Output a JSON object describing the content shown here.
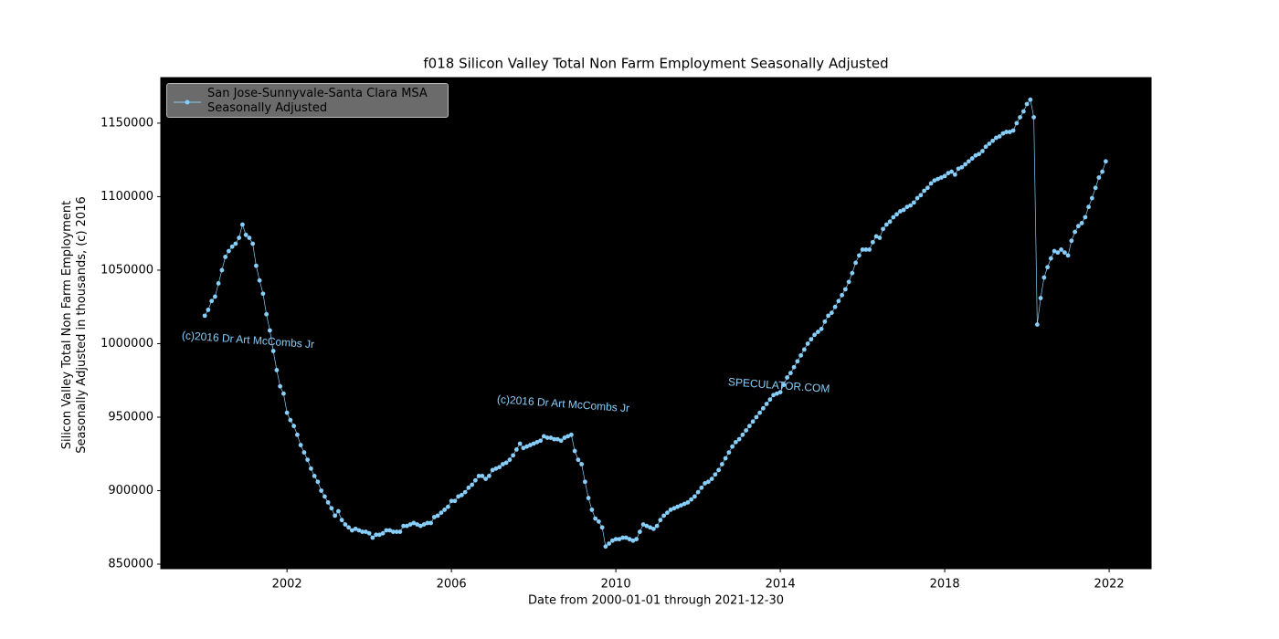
{
  "chart_data": {
    "type": "line",
    "title": "f018 Silicon Valley Total Non Farm Employment Seasonally Adjusted",
    "x_label": "Date from 2000-01-01 through 2021-12-30",
    "y_label": "Silicon Valley Total Non Farm Employment\nSeasonally Adjusted in thousands, (c) 2016",
    "annotations": [
      "(c)2016 Dr Art McCombs Jr",
      "(c)2016 Dr Art McCombs Jr",
      "SPECULATOR.COM"
    ],
    "legend": "upper left",
    "background": "#000000",
    "xlim": [
      1998.93,
      2023.02
    ],
    "xticks": [
      2002,
      2006,
      2010,
      2014,
      2018,
      2022
    ],
    "ylim": [
      846900,
      1181000
    ],
    "yticks": [
      850000,
      900000,
      950000,
      1000000,
      1050000,
      1100000,
      1150000
    ],
    "series": [
      {
        "name": "San Jose-Sunnyvale-Santa Clara MSA\nSeasonally Adjusted",
        "color": "#87cefa",
        "x": [
          2000,
          2000.083,
          2000.167,
          2000.25,
          2000.333,
          2000.417,
          2000.5,
          2000.583,
          2000.667,
          2000.75,
          2000.833,
          2000.917,
          2001,
          2001.083,
          2001.167,
          2001.25,
          2001.333,
          2001.417,
          2001.5,
          2001.583,
          2001.667,
          2001.75,
          2001.833,
          2001.917,
          2002,
          2002.083,
          2002.167,
          2002.25,
          2002.333,
          2002.417,
          2002.5,
          2002.583,
          2002.667,
          2002.75,
          2002.833,
          2002.917,
          2003,
          2003.083,
          2003.167,
          2003.25,
          2003.333,
          2003.417,
          2003.5,
          2003.583,
          2003.667,
          2003.75,
          2003.833,
          2003.917,
          2004,
          2004.083,
          2004.167,
          2004.25,
          2004.333,
          2004.417,
          2004.5,
          2004.583,
          2004.667,
          2004.75,
          2004.833,
          2004.917,
          2005,
          2005.083,
          2005.167,
          2005.25,
          2005.333,
          2005.417,
          2005.5,
          2005.583,
          2005.667,
          2005.75,
          2005.833,
          2005.917,
          2006,
          2006.083,
          2006.167,
          2006.25,
          2006.333,
          2006.417,
          2006.5,
          2006.583,
          2006.667,
          2006.75,
          2006.833,
          2006.917,
          2007,
          2007.083,
          2007.167,
          2007.25,
          2007.333,
          2007.417,
          2007.5,
          2007.583,
          2007.667,
          2007.75,
          2007.833,
          2007.917,
          2008,
          2008.083,
          2008.167,
          2008.25,
          2008.333,
          2008.417,
          2008.5,
          2008.583,
          2008.667,
          2008.75,
          2008.833,
          2008.917,
          2009,
          2009.083,
          2009.167,
          2009.25,
          2009.333,
          2009.417,
          2009.5,
          2009.583,
          2009.667,
          2009.75,
          2009.833,
          2009.917,
          2010,
          2010.083,
          2010.167,
          2010.25,
          2010.333,
          2010.417,
          2010.5,
          2010.583,
          2010.667,
          2010.75,
          2010.833,
          2010.917,
          2011,
          2011.083,
          2011.167,
          2011.25,
          2011.333,
          2011.417,
          2011.5,
          2011.583,
          2011.667,
          2011.75,
          2011.833,
          2011.917,
          2012,
          2012.083,
          2012.167,
          2012.25,
          2012.333,
          2012.417,
          2012.5,
          2012.583,
          2012.667,
          2012.75,
          2012.833,
          2012.917,
          2013,
          2013.083,
          2013.167,
          2013.25,
          2013.333,
          2013.417,
          2013.5,
          2013.583,
          2013.667,
          2013.75,
          2013.833,
          2013.917,
          2014,
          2014.083,
          2014.167,
          2014.25,
          2014.333,
          2014.417,
          2014.5,
          2014.583,
          2014.667,
          2014.75,
          2014.833,
          2014.917,
          2015,
          2015.083,
          2015.167,
          2015.25,
          2015.333,
          2015.417,
          2015.5,
          2015.583,
          2015.667,
          2015.75,
          2015.833,
          2015.917,
          2016,
          2016.083,
          2016.167,
          2016.25,
          2016.333,
          2016.417,
          2016.5,
          2016.583,
          2016.667,
          2016.75,
          2016.833,
          2016.917,
          2017,
          2017.083,
          2017.167,
          2017.25,
          2017.333,
          2017.417,
          2017.5,
          2017.583,
          2017.667,
          2017.75,
          2017.833,
          2017.917,
          2018,
          2018.083,
          2018.167,
          2018.25,
          2018.333,
          2018.417,
          2018.5,
          2018.583,
          2018.667,
          2018.75,
          2018.833,
          2018.917,
          2019,
          2019.083,
          2019.167,
          2019.25,
          2019.333,
          2019.417,
          2019.5,
          2019.583,
          2019.667,
          2019.75,
          2019.833,
          2019.917,
          2020,
          2020.083,
          2020.167,
          2020.25,
          2020.333,
          2020.417,
          2020.5,
          2020.583,
          2020.667,
          2020.75,
          2020.833,
          2020.917,
          2021,
          2021.083,
          2021.167,
          2021.25,
          2021.333,
          2021.417,
          2021.5,
          2021.583,
          2021.667,
          2021.75,
          2021.833,
          2021.917
        ],
        "values": [
          1019000,
          1023000,
          1029000,
          1032000,
          1041000,
          1050000,
          1059000,
          1063000,
          1066000,
          1068000,
          1072000,
          1081000,
          1074000,
          1072000,
          1068000,
          1053000,
          1043000,
          1034000,
          1020000,
          1009000,
          995000,
          982000,
          971000,
          966000,
          953000,
          948000,
          944000,
          938000,
          931000,
          926000,
          921000,
          915000,
          910000,
          906000,
          900000,
          896000,
          892000,
          888000,
          883000,
          886000,
          880000,
          877000,
          875000,
          873000,
          874000,
          873000,
          872000,
          872000,
          871000,
          868000,
          870000,
          870000,
          871000,
          873000,
          873000,
          872000,
          872000,
          872000,
          876000,
          876000,
          877000,
          878000,
          877000,
          876000,
          877000,
          878000,
          878000,
          882000,
          883000,
          885000,
          887000,
          889000,
          893000,
          893000,
          896000,
          897000,
          899000,
          902000,
          904000,
          907000,
          910000,
          910000,
          908000,
          910000,
          914000,
          915000,
          916000,
          918000,
          919000,
          921000,
          924000,
          928000,
          932000,
          929000,
          930000,
          931000,
          932000,
          933000,
          934000,
          937000,
          936000,
          936000,
          935000,
          935000,
          934000,
          936000,
          937000,
          938000,
          927000,
          921000,
          918000,
          906000,
          895000,
          887000,
          881000,
          879000,
          875000,
          862000,
          864000,
          866000,
          867000,
          867000,
          868000,
          868000,
          867000,
          866000,
          867000,
          872000,
          877000,
          876000,
          875000,
          874000,
          876000,
          880000,
          883000,
          885000,
          887000,
          888000,
          889000,
          890000,
          891000,
          892000,
          894000,
          896000,
          899000,
          902000,
          905000,
          906000,
          908000,
          911000,
          914000,
          918000,
          922000,
          926000,
          930000,
          933000,
          935000,
          938000,
          941000,
          944000,
          947000,
          950000,
          953000,
          956000,
          959000,
          962000,
          965000,
          966000,
          967000,
          972000,
          977000,
          980000,
          984000,
          988000,
          992000,
          996000,
          1000000,
          1003000,
          1006000,
          1008000,
          1010000,
          1015000,
          1019000,
          1021000,
          1025000,
          1029000,
          1033000,
          1037000,
          1042000,
          1048000,
          1055000,
          1060000,
          1064000,
          1064000,
          1064000,
          1069000,
          1073000,
          1072000,
          1078000,
          1081000,
          1083000,
          1086000,
          1088000,
          1090000,
          1091000,
          1093000,
          1094000,
          1096000,
          1099000,
          1101000,
          1104000,
          1106000,
          1109000,
          1111000,
          1112000,
          1113000,
          1114000,
          1116000,
          1117000,
          1115000,
          1119000,
          1120000,
          1122000,
          1124000,
          1126000,
          1128000,
          1129000,
          1131000,
          1134000,
          1136000,
          1138000,
          1140000,
          1141000,
          1143000,
          1144000,
          1144000,
          1145000,
          1150000,
          1154000,
          1158000,
          1163000,
          1166000,
          1154000,
          1013000,
          1031000,
          1045000,
          1052000,
          1058000,
          1063000,
          1062000,
          1064000,
          1062000,
          1060000,
          1070000,
          1076000,
          1080000,
          1082000,
          1086000,
          1093000,
          1099000,
          1106000,
          1113000,
          1117000,
          1124000
        ]
      }
    ]
  }
}
